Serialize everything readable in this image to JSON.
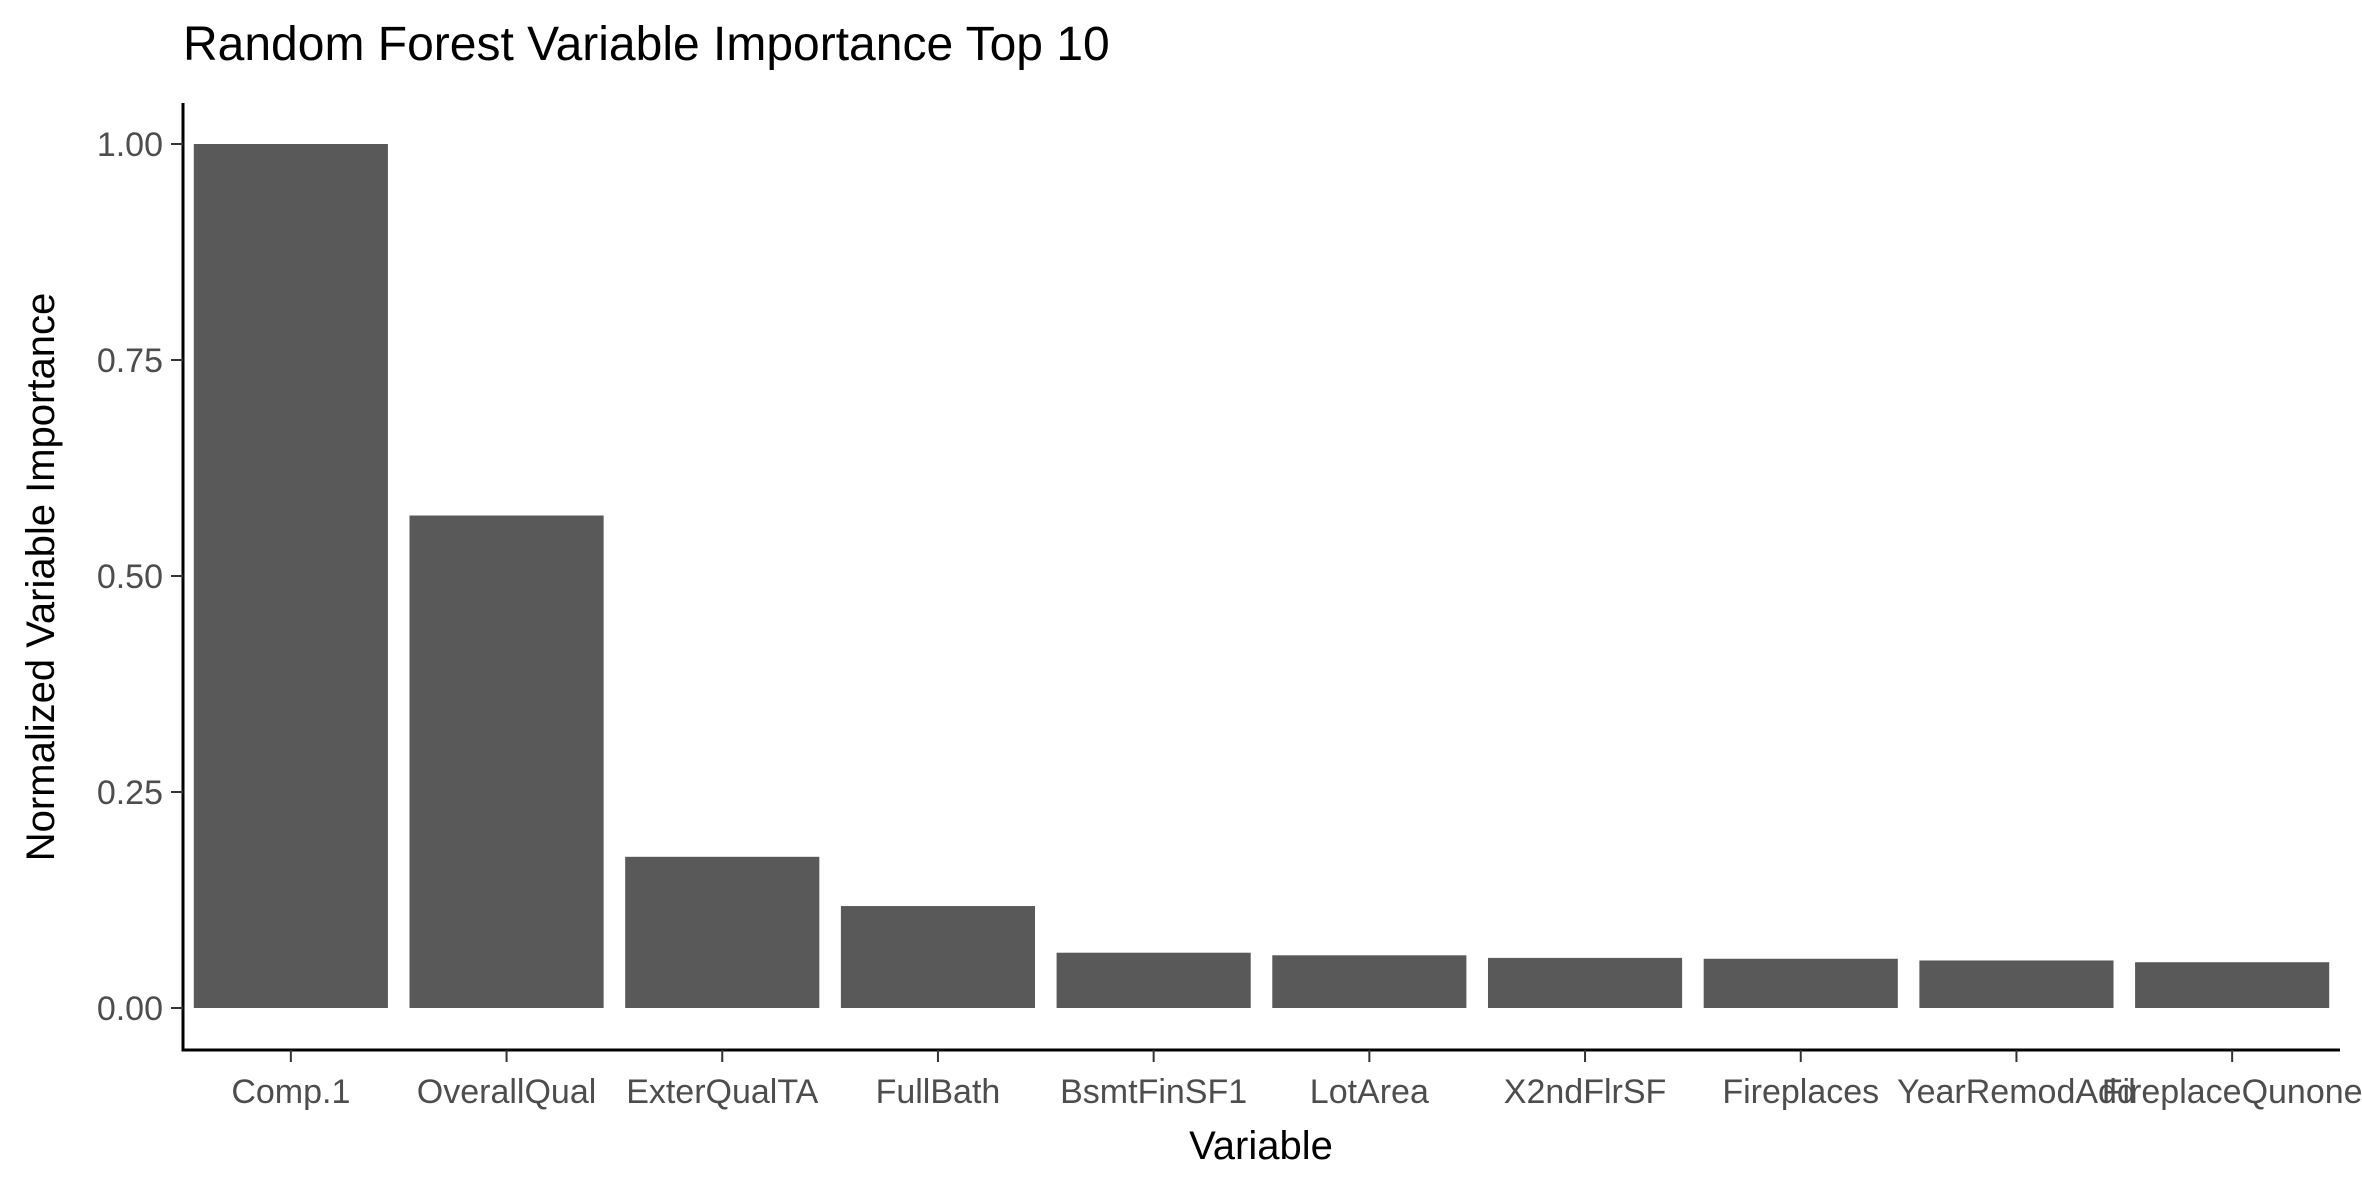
{
  "chart_data": {
    "type": "bar",
    "title": "Random Forest Variable Importance Top 10",
    "xlabel": "Variable",
    "ylabel": "Normalized Variable Importance",
    "categories": [
      "Comp.1",
      "OverallQual",
      "ExterQualTA",
      "FullBath",
      "BsmtFinSF1",
      "LotArea",
      "X2ndFlrSF",
      "Fireplaces",
      "YearRemodAdd",
      "FireplaceQunone"
    ],
    "values": [
      1.0,
      0.57,
      0.175,
      0.118,
      0.064,
      0.061,
      0.058,
      0.057,
      0.055,
      0.053
    ],
    "ylim": [
      0,
      1.0
    ],
    "yticks": [
      0.0,
      0.25,
      0.5,
      0.75,
      1.0
    ],
    "ytick_labels": [
      "0.00",
      "0.25",
      "0.50",
      "0.75",
      "1.00"
    ],
    "grid": false,
    "legend": "none",
    "bar_color": "#595959",
    "axis_color": "#000000",
    "tick_label_color": "#4d4d4d"
  }
}
